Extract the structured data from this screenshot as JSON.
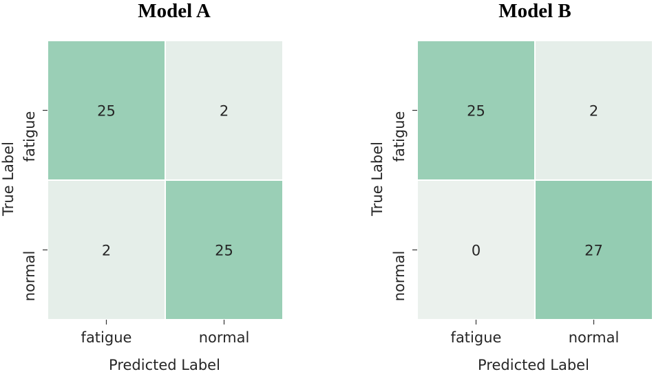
{
  "chart_data": [
    {
      "type": "heatmap",
      "title": "Model A",
      "xlabel": "Predicted Label",
      "ylabel": "True Label",
      "x_categories": [
        "fatigue",
        "normal"
      ],
      "y_categories": [
        "fatigue",
        "normal"
      ],
      "values": [
        [
          25,
          2
        ],
        [
          2,
          25
        ]
      ],
      "colormap": {
        "low": "#ebf1ed",
        "high": "#94ccb2"
      },
      "vmin": 0,
      "vmax": 27,
      "colorbar": false
    },
    {
      "type": "heatmap",
      "title": "Model B",
      "xlabel": "Predicted Label",
      "ylabel": "True Label",
      "x_categories": [
        "fatigue",
        "normal"
      ],
      "y_categories": [
        "fatigue",
        "normal"
      ],
      "values": [
        [
          25,
          2
        ],
        [
          0,
          27
        ]
      ],
      "colormap": {
        "low": "#ebf1ed",
        "high": "#94ccb2"
      },
      "vmin": 0,
      "vmax": 27,
      "colorbar": false
    }
  ]
}
